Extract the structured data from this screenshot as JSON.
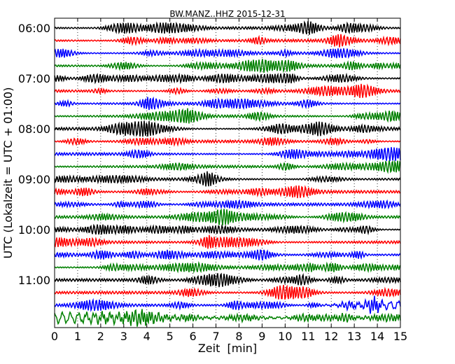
{
  "chart_data": {
    "type": "line",
    "title": "BW.MANZ..HHZ 2015-12-31",
    "xlabel": "Zeit  [min]",
    "ylabel": "UTC (Lokalzeit = UTC + 01:00)",
    "xlim": [
      0,
      15
    ],
    "x_ticks": [
      "0",
      "1",
      "2",
      "3",
      "4",
      "5",
      "6",
      "7",
      "8",
      "9",
      "10",
      "11",
      "12",
      "13",
      "14",
      "15"
    ],
    "y_ticks": [
      "06:00",
      "07:00",
      "08:00",
      "09:00",
      "10:00",
      "11:00"
    ],
    "grid": "vertical dotted",
    "trace_count": 24,
    "trace_start_hour": 6,
    "trace_interval_min": 15,
    "trace_colors": [
      "#000000",
      "#ff0000",
      "#0000ff",
      "#008000"
    ]
  }
}
